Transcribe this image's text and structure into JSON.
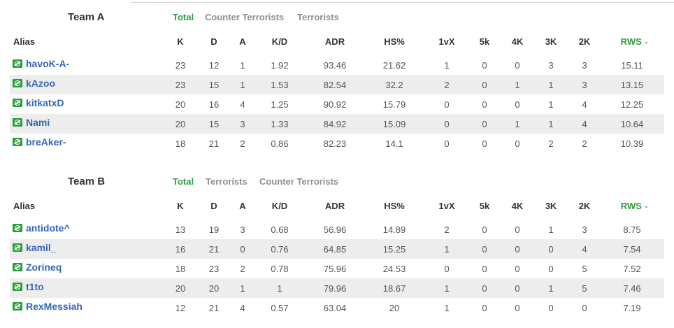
{
  "columns": [
    "Alias",
    "K",
    "D",
    "A",
    "K/D",
    "ADR",
    "HS%",
    "1vX",
    "5k",
    "4K",
    "3K",
    "2K",
    "RWS"
  ],
  "teamA": {
    "name": "Team A",
    "tabs": [
      {
        "label": "Total",
        "active": true
      },
      {
        "label": "Counter Terrorists",
        "active": false
      },
      {
        "label": "Terrorists",
        "active": false
      }
    ],
    "players": [
      {
        "alias": "havoK-A-",
        "K": "23",
        "D": "12",
        "A": "1",
        "KD": "1.92",
        "ADR": "93.46",
        "HS": "21.62",
        "vX": "1",
        "k5": "0",
        "k4": "0",
        "k3": "3",
        "k2": "3",
        "RWS": "15.11"
      },
      {
        "alias": "kAzoo",
        "K": "23",
        "D": "15",
        "A": "1",
        "KD": "1.53",
        "ADR": "82.54",
        "HS": "32.2",
        "vX": "2",
        "k5": "0",
        "k4": "1",
        "k3": "1",
        "k2": "3",
        "RWS": "13.15"
      },
      {
        "alias": "kitkatxD",
        "K": "20",
        "D": "16",
        "A": "4",
        "KD": "1.25",
        "ADR": "90.92",
        "HS": "15.79",
        "vX": "0",
        "k5": "0",
        "k4": "0",
        "k3": "1",
        "k2": "4",
        "RWS": "12.25"
      },
      {
        "alias": "Nami",
        "K": "20",
        "D": "15",
        "A": "3",
        "KD": "1.33",
        "ADR": "84.92",
        "HS": "15.09",
        "vX": "0",
        "k5": "0",
        "k4": "1",
        "k3": "1",
        "k2": "4",
        "RWS": "10.64"
      },
      {
        "alias": "breAker-",
        "K": "18",
        "D": "21",
        "A": "2",
        "KD": "0.86",
        "ADR": "82.23",
        "HS": "14.1",
        "vX": "0",
        "k5": "0",
        "k4": "0",
        "k3": "2",
        "k2": "2",
        "RWS": "10.39"
      }
    ]
  },
  "teamB": {
    "name": "Team B",
    "tabs": [
      {
        "label": "Total",
        "active": true
      },
      {
        "label": "Terrorists",
        "active": false
      },
      {
        "label": "Counter Terrorists",
        "active": false
      }
    ],
    "players": [
      {
        "alias": "antidote^",
        "K": "13",
        "D": "19",
        "A": "3",
        "KD": "0.68",
        "ADR": "56.96",
        "HS": "14.89",
        "vX": "2",
        "k5": "0",
        "k4": "0",
        "k3": "1",
        "k2": "3",
        "RWS": "8.75"
      },
      {
        "alias": "kamil_",
        "K": "16",
        "D": "21",
        "A": "0",
        "KD": "0.76",
        "ADR": "64.85",
        "HS": "15.25",
        "vX": "1",
        "k5": "0",
        "k4": "0",
        "k3": "0",
        "k2": "4",
        "RWS": "7.54"
      },
      {
        "alias": "Zorineq",
        "K": "18",
        "D": "23",
        "A": "2",
        "KD": "0.78",
        "ADR": "75.96",
        "HS": "24.53",
        "vX": "0",
        "k5": "0",
        "k4": "0",
        "k3": "0",
        "k2": "5",
        "RWS": "7.52"
      },
      {
        "alias": "t1to",
        "K": "20",
        "D": "20",
        "A": "1",
        "KD": "1",
        "ADR": "79.96",
        "HS": "18.67",
        "vX": "1",
        "k5": "0",
        "k4": "0",
        "k3": "1",
        "k2": "5",
        "RWS": "7.46"
      },
      {
        "alias": "RexMessiah",
        "K": "12",
        "D": "21",
        "A": "4",
        "KD": "0.57",
        "ADR": "63.04",
        "HS": "20",
        "vX": "1",
        "k5": "0",
        "k4": "0",
        "k3": "0",
        "k2": "0",
        "RWS": "7.19"
      }
    ]
  },
  "colors": {
    "accent": "#2e9e3e",
    "link": "#3366bb",
    "stripe": "#ededed"
  },
  "icons": {
    "player_flag": "country-flag-icon",
    "sort": "chevron-down-icon"
  }
}
